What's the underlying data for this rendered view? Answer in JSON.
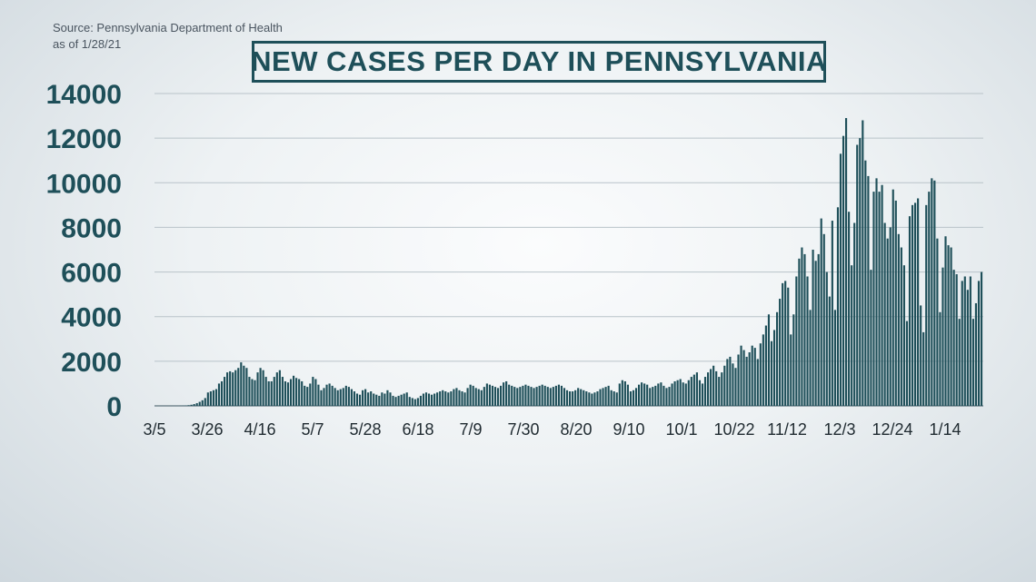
{
  "source_line1": "Source: Pennsylvania Department of Health",
  "source_line2": "as of 1/28/21",
  "chart_data": {
    "type": "bar",
    "title": "NEW CASES PER DAY IN PENNSYLVANIA",
    "xlabel": "",
    "ylabel": "",
    "ylim": [
      0,
      14000
    ],
    "yticks": [
      0,
      2000,
      4000,
      6000,
      8000,
      10000,
      12000,
      14000
    ],
    "grid": true,
    "legend": "none",
    "bar_color": "#1e4f59",
    "x_start": "3/5",
    "x_end": "1/27",
    "x_tick_labels": [
      "3/5",
      "3/26",
      "4/16",
      "5/7",
      "5/28",
      "6/18",
      "7/9",
      "7/30",
      "8/20",
      "9/10",
      "10/1",
      "10/22",
      "11/12",
      "12/3",
      "12/24",
      "1/14"
    ],
    "values": [
      0,
      0,
      0,
      0,
      0,
      0,
      0,
      0,
      0,
      5,
      10,
      20,
      30,
      50,
      80,
      120,
      180,
      250,
      350,
      600,
      650,
      700,
      750,
      1000,
      1100,
      1300,
      1500,
      1550,
      1500,
      1600,
      1700,
      1950,
      1800,
      1700,
      1300,
      1200,
      1150,
      1500,
      1700,
      1600,
      1300,
      1100,
      1100,
      1300,
      1500,
      1600,
      1300,
      1100,
      1050,
      1200,
      1350,
      1250,
      1200,
      1100,
      900,
      850,
      1000,
      1300,
      1200,
      950,
      700,
      800,
      950,
      1000,
      900,
      800,
      700,
      750,
      800,
      900,
      850,
      750,
      650,
      550,
      500,
      700,
      750,
      600,
      650,
      550,
      500,
      450,
      600,
      550,
      700,
      600,
      450,
      400,
      450,
      500,
      550,
      600,
      400,
      350,
      300,
      350,
      450,
      550,
      600,
      550,
      500,
      550,
      600,
      650,
      700,
      650,
      600,
      650,
      750,
      800,
      700,
      650,
      600,
      800,
      950,
      900,
      800,
      750,
      700,
      850,
      1000,
      950,
      900,
      850,
      800,
      900,
      1050,
      1100,
      950,
      900,
      850,
      800,
      850,
      900,
      950,
      900,
      850,
      800,
      850,
      900,
      950,
      900,
      850,
      800,
      850,
      900,
      950,
      900,
      800,
      700,
      650,
      650,
      700,
      800,
      750,
      700,
      650,
      600,
      550,
      600,
      650,
      750,
      800,
      850,
      900,
      700,
      650,
      600,
      1000,
      1150,
      1100,
      950,
      650,
      700,
      800,
      950,
      1050,
      1000,
      950,
      800,
      850,
      900,
      1000,
      1050,
      900,
      800,
      850,
      1000,
      1100,
      1150,
      1200,
      1050,
      1000,
      1150,
      1300,
      1400,
      1500,
      1150,
      1000,
      1300,
      1500,
      1650,
      1800,
      1550,
      1300,
      1500,
      1800,
      2100,
      2200,
      1900,
      1700,
      2300,
      2700,
      2500,
      2200,
      2400,
      2700,
      2600,
      2100,
      2800,
      3200,
      3600,
      4100,
      2900,
      3400,
      4200,
      4800,
      5500,
      5600,
      5300,
      3200,
      4100,
      5800,
      6600,
      7100,
      6800,
      5800,
      4300,
      7000,
      6500,
      6800,
      8400,
      7700,
      6000,
      4900,
      8300,
      4300,
      8900,
      11300,
      12100,
      12900,
      8700,
      6300,
      8200,
      11700,
      12000,
      12800,
      11000,
      10300,
      6100,
      9600,
      10200,
      9600,
      9900,
      8200,
      7500,
      8000,
      9700,
      9200,
      7700,
      7100,
      6300,
      3800,
      8500,
      9000,
      9100,
      9300,
      4500,
      3300,
      9000,
      9600,
      10200,
      10100,
      7500,
      4200,
      6200,
      7600,
      7200,
      7100,
      6100,
      5900,
      3900,
      5600,
      5800,
      5200,
      5800,
      3900,
      4600,
      5600,
      6000
    ]
  }
}
